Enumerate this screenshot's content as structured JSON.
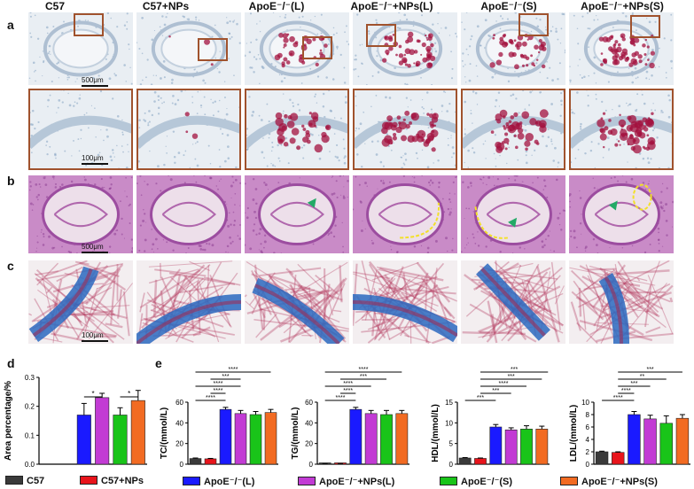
{
  "columns": [
    "C57",
    "C57+NPs",
    "ApoE⁻/⁻(L)",
    "ApoE⁻/⁻+NPs(L)",
    "ApoE⁻/⁻(S)",
    "ApoE⁻/⁻+NPs(S)"
  ],
  "panels": {
    "a": "a",
    "b": "b",
    "c": "c",
    "d": "d",
    "e": "e"
  },
  "scalebars": {
    "a_top": "500μm",
    "a_bottom": "100μm",
    "b": "500μm",
    "c": "100μm"
  },
  "colors": {
    "C57": "#3a3a3a",
    "C57+NPs": "#e8141b",
    "ApoE-/-(L)": "#1a1aff",
    "ApoE-/-+NPs(L)": "#c23bd4",
    "ApoE-/-(S)": "#19c419",
    "ApoE-/-+NPs(S)": "#f26b22",
    "inset_box": "#a0522d",
    "oil_red": "#a3123f",
    "he_pink": "#c77bbf",
    "masson_blue": "#2a68c0",
    "arrow_green": "#22aa66",
    "dash_yellow": "#f2e02a"
  },
  "legend": [
    {
      "label": "C57",
      "color": "#3a3a3a"
    },
    {
      "label": "C57+NPs",
      "color": "#e8141b"
    },
    {
      "label": "ApoE⁻/⁻(L)",
      "color": "#1a1aff"
    },
    {
      "label": "ApoE⁻/⁻+NPs(L)",
      "color": "#c23bd4"
    },
    {
      "label": "ApoE⁻/⁻(S)",
      "color": "#19c419"
    },
    {
      "label": "ApoE⁻/⁻+NPs(S)",
      "color": "#f26b22"
    }
  ],
  "chart_data": [
    {
      "type": "bar",
      "panel": "d",
      "ylabel": "Area percentage/%",
      "ylim": [
        0,
        0.3
      ],
      "yticks": [
        "0.0",
        "0.1",
        "0.2",
        "0.3"
      ],
      "values": [
        0.0,
        0.0,
        0.17,
        0.23,
        0.17,
        0.22
      ],
      "errors": [
        0,
        0,
        0.04,
        0.015,
        0.025,
        0.035
      ],
      "significance": [
        {
          "from": 2,
          "to": 3,
          "label": "*"
        },
        {
          "from": 4,
          "to": 5,
          "label": "*"
        }
      ]
    },
    {
      "type": "bar",
      "panel": "e",
      "ylabel": "TC/(mmol/L)",
      "ylim": [
        0,
        60
      ],
      "yticks": [
        "0",
        "20",
        "40",
        "60"
      ],
      "values": [
        5.5,
        5.2,
        53,
        49,
        48,
        50
      ],
      "errors": [
        0.5,
        0.4,
        2,
        3,
        3,
        3
      ],
      "significance": [
        {
          "from": 0,
          "to": 2,
          "label": "****"
        },
        {
          "from": 1,
          "to": 2,
          "label": "****"
        },
        {
          "from": 0,
          "to": 3,
          "label": "****"
        },
        {
          "from": 1,
          "to": 3,
          "label": "***"
        },
        {
          "from": 0,
          "to": 5,
          "label": "****"
        }
      ]
    },
    {
      "type": "bar",
      "panel": "e",
      "ylabel": "TG/(mmol/L)",
      "ylim": [
        0,
        60
      ],
      "yticks": [
        "0",
        "20",
        "40",
        "60"
      ],
      "values": [
        0.5,
        0.5,
        53,
        49,
        48,
        49
      ],
      "errors": [
        0.1,
        0.1,
        2,
        3,
        4,
        3
      ],
      "significance": [
        {
          "from": 0,
          "to": 2,
          "label": "****"
        },
        {
          "from": 1,
          "to": 2,
          "label": "****"
        },
        {
          "from": 0,
          "to": 3,
          "label": "****"
        },
        {
          "from": 1,
          "to": 4,
          "label": "***"
        },
        {
          "from": 0,
          "to": 5,
          "label": "****"
        }
      ]
    },
    {
      "type": "bar",
      "panel": "e",
      "ylabel": "HDL/(mmol/L)",
      "ylim": [
        0,
        15
      ],
      "yticks": [
        "0",
        "5",
        "10",
        "15"
      ],
      "values": [
        1.5,
        1.4,
        9.0,
        8.3,
        8.5,
        8.5
      ],
      "errors": [
        0.1,
        0.1,
        0.6,
        0.5,
        0.8,
        0.7
      ],
      "significance": [
        {
          "from": 0,
          "to": 2,
          "label": "***"
        },
        {
          "from": 1,
          "to": 3,
          "label": "***"
        },
        {
          "from": 1,
          "to": 4,
          "label": "****"
        },
        {
          "from": 1,
          "to": 5,
          "label": "***"
        },
        {
          "from": 1,
          "to": 6,
          "label": "***"
        }
      ]
    },
    {
      "type": "bar",
      "panel": "e",
      "ylabel": "LDL/(mmol/L)",
      "ylim": [
        0,
        10
      ],
      "yticks": [
        "0",
        "2",
        "4",
        "6",
        "8",
        "10"
      ],
      "values": [
        2.0,
        1.9,
        8.0,
        7.3,
        6.6,
        7.4
      ],
      "errors": [
        0.1,
        0.1,
        0.5,
        0.6,
        1.2,
        0.6
      ],
      "significance": [
        {
          "from": 0,
          "to": 2,
          "label": "****"
        },
        {
          "from": 1,
          "to": 2,
          "label": "****"
        },
        {
          "from": 1,
          "to": 3,
          "label": "***"
        },
        {
          "from": 1,
          "to": 4,
          "label": "**"
        },
        {
          "from": 1,
          "to": 5,
          "label": "***"
        }
      ]
    }
  ]
}
